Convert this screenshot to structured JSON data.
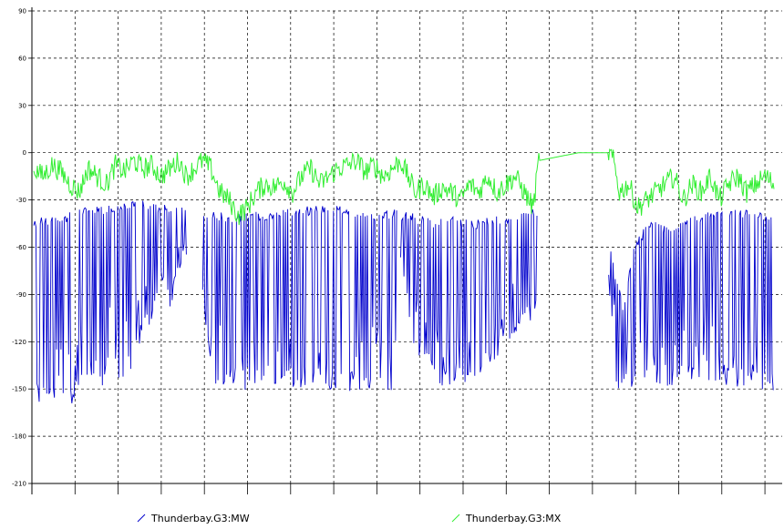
{
  "chart_data": {
    "type": "line",
    "title": "",
    "xlabel": "",
    "ylabel": "",
    "ylim": [
      -210,
      90
    ],
    "yticks": [
      90,
      60,
      30,
      0,
      -30,
      -60,
      -90,
      -120,
      -150,
      -180,
      -210
    ],
    "grid": true,
    "legend_position": "bottom",
    "x_points": 820,
    "series": [
      {
        "name": "Thunderbay.G3:MW",
        "color": "#0000cc",
        "segments": [
          {
            "x": [
              0,
              4,
              6,
              12,
              20,
              30,
              44,
              50,
              60,
              72,
              80,
              88,
              100,
              110,
              120,
              130,
              140,
              150,
              160,
              168
            ],
            "upper": [
              -45,
              -50,
              -43,
              -44,
              -43,
              -42,
              -40,
              -38,
              -38,
              -37,
              -36,
              -36,
              -35,
              -34,
              -33,
              -34,
              -36,
              -36,
              -37,
              -38
            ],
            "lower": [
              -160,
              -160,
              -161,
              -160,
              -158,
              -155,
              -160,
              -150,
              -140,
              -150,
              -145,
              -140,
              -150,
              -135,
              -120,
              -110,
              -90,
              -100,
              -80,
              -65
            ]
          },
          {
            "x": [
              186,
              200,
              220,
              250,
              280,
              300,
              330,
              360,
              380,
              400
            ],
            "upper": [
              -38,
              -40,
              -42,
              -40,
              -38,
              -37,
              -36,
              -38,
              -40,
              -38
            ],
            "lower": [
              -100,
              -150,
              -151,
              -150,
              -152,
              -150,
              -151,
              -152,
              -152,
              -150
            ]
          },
          {
            "x": [
              404,
              410,
              420,
              440,
              460,
              480,
              500,
              520,
              540,
              555
            ],
            "upper": [
              -38,
              -40,
              -42,
              -45,
              -43,
              -46,
              -44,
              -42,
              -40,
              -38
            ],
            "lower": [
              -80,
              -100,
              -130,
              -145,
              -152,
              -150,
              -140,
              -120,
              -110,
              -105
            ]
          },
          {
            "x": [
              633,
              640,
              650,
              660,
              680,
              700,
              720,
              740,
              760,
              780,
              800,
              815
            ],
            "upper": [
              -40,
              -80,
              -100,
              -60,
              -45,
              -50,
              -45,
              -40,
              -40,
              -38,
              -40,
              -45
            ],
            "lower": [
              -80,
              -150,
              -150,
              -149,
              -149,
              -148,
              -148,
              -147,
              -148,
              -149,
              -150,
              -152
            ]
          }
        ]
      },
      {
        "name": "Thunderbay.G3:MX",
        "color": "#33ee33",
        "points": {
          "x": [
            0,
            10,
            20,
            30,
            40,
            50,
            60,
            70,
            80,
            90,
            100,
            110,
            120,
            130,
            140,
            150,
            160,
            168,
            186,
            195,
            205,
            215,
            225,
            235,
            245,
            255,
            265,
            275,
            285,
            295,
            305,
            315,
            325,
            335,
            345,
            355,
            365,
            375,
            385,
            395,
            404,
            412,
            420,
            430,
            440,
            450,
            460,
            470,
            480,
            490,
            500,
            510,
            520,
            530,
            540,
            550,
            556,
            600,
            633,
            638,
            645,
            655,
            665,
            675,
            685,
            695,
            705,
            715,
            725,
            735,
            745,
            755,
            765,
            775,
            785,
            795,
            805,
            815
          ],
          "y": [
            -10,
            -15,
            -8,
            -12,
            -20,
            -25,
            -10,
            -15,
            -20,
            -8,
            -12,
            -5,
            -10,
            -8,
            -15,
            -10,
            -5,
            -15,
            -5,
            -10,
            -25,
            -30,
            -40,
            -35,
            -25,
            -20,
            -22,
            -18,
            -25,
            -15,
            -10,
            -20,
            -15,
            -10,
            -8,
            -5,
            -12,
            -8,
            -15,
            -10,
            -5,
            -15,
            -25,
            -20,
            -28,
            -22,
            -25,
            -30,
            -20,
            -25,
            -15,
            -25,
            -20,
            -15,
            -25,
            -35,
            -5,
            0,
            0,
            -5,
            -25,
            -20,
            -35,
            -30,
            -25,
            -20,
            -15,
            -30,
            -20,
            -25,
            -15,
            -30,
            -20,
            -15,
            -25,
            -20,
            -15,
            -20
          ]
        }
      }
    ],
    "legend": [
      {
        "label": "Thunderbay.G3:MW",
        "color": "#0000cc"
      },
      {
        "label": "Thunderbay.G3:MX",
        "color": "#33ee33"
      }
    ]
  }
}
